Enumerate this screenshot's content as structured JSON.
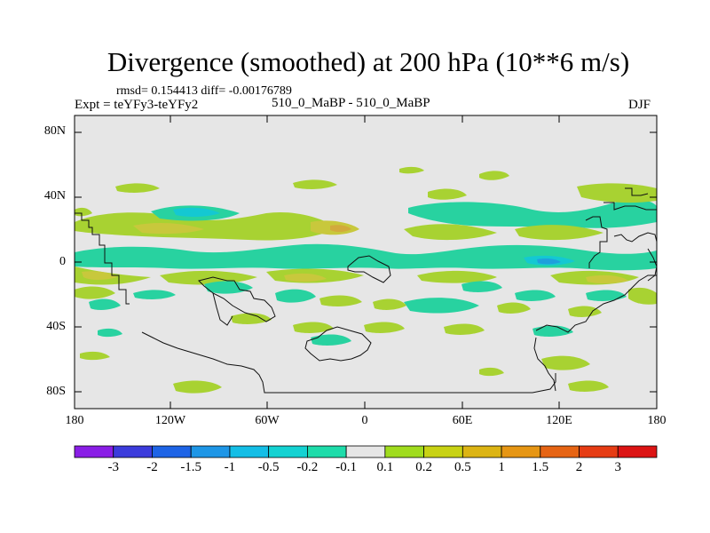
{
  "title": "Divergence (smoothed) at 200 hPa (10**6 m/s)",
  "stats": "rmsd= 0.154413 diff= -0.00176789",
  "experiment": "Expt = teYFy3-teYFy2",
  "runs": "510_0_MaBP - 510_0_MaBP",
  "season": "DJF",
  "y_ticks": [
    "80N",
    "40N",
    "0",
    "40S",
    "80S"
  ],
  "x_ticks": [
    "180",
    "120W",
    "60W",
    "0",
    "60E",
    "120E",
    "180"
  ],
  "colorbar": {
    "labels": [
      "-3",
      "-2",
      "-1.5",
      "-1",
      "-0.5",
      "-0.2",
      "-0.1",
      "0.1",
      "0.2",
      "0.5",
      "1",
      "1.5",
      "2",
      "3"
    ],
    "colors": [
      "#8a1ee6",
      "#3c3cdc",
      "#1e64e6",
      "#1e96e6",
      "#14bee6",
      "#14d2d2",
      "#1edcaa",
      "#e6e6e6",
      "#a0dc1e",
      "#c8d214",
      "#dcb414",
      "#e69614",
      "#e66414",
      "#e63c14",
      "#dc1414"
    ]
  },
  "map_colors": {
    "background": "#e6e6e6",
    "weak_div": "#a8d232",
    "mod_div": "#c8c83c",
    "strong_div": "#d2aa3c",
    "weak_conv": "#28d2a0",
    "mod_conv": "#14c8d2",
    "strong_conv": "#1ea0dc"
  }
}
